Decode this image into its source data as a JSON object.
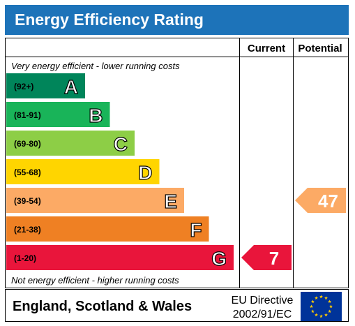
{
  "title": "Energy Efficiency Rating",
  "columns": {
    "current": "Current",
    "potential": "Potential"
  },
  "top_note": "Very energy efficient - lower running costs",
  "bottom_note": "Not energy efficient - higher running costs",
  "footer": {
    "region": "England, Scotland & Wales",
    "directive_line1": "EU Directive",
    "directive_line2": "2002/91/EC"
  },
  "chart_data": {
    "type": "bar",
    "title": "Energy Efficiency Rating",
    "bands": [
      {
        "letter": "A",
        "range": "(92+)",
        "color": "#00855a"
      },
      {
        "letter": "B",
        "range": "(81-91)",
        "color": "#19b459"
      },
      {
        "letter": "C",
        "range": "(69-80)",
        "color": "#8dce46"
      },
      {
        "letter": "D",
        "range": "(55-68)",
        "color": "#ffd500"
      },
      {
        "letter": "E",
        "range": "(39-54)",
        "color": "#fcaa65"
      },
      {
        "letter": "F",
        "range": "(21-38)",
        "color": "#ef8023"
      },
      {
        "letter": "G",
        "range": "(1-20)",
        "color": "#e9153b"
      }
    ],
    "current": {
      "value": 7,
      "band": "G",
      "color": "#e9153b"
    },
    "potential": {
      "value": 47,
      "band": "E",
      "color": "#fcaa65"
    }
  }
}
